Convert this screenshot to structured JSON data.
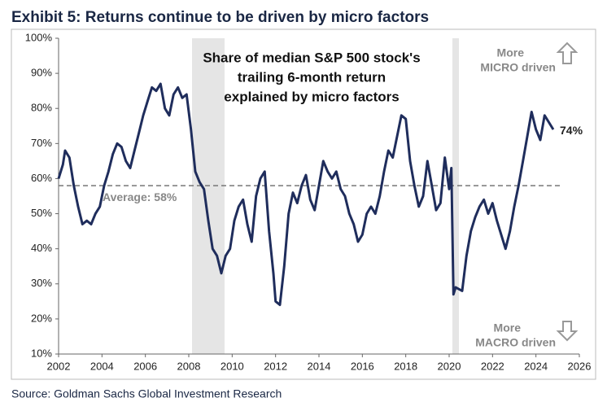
{
  "chart_data": {
    "type": "line",
    "title": "Exhibit 5: Returns continue to be driven by micro factors",
    "source": "Source: Goldman Sachs Global Investment Research",
    "annotation_lines": [
      "Share of median S&P 500 stock's",
      "trailing 6-month return",
      "explained by micro factors"
    ],
    "top_note_lines": [
      "More",
      "MICRO driven"
    ],
    "bottom_note_lines": [
      "More",
      "MACRO driven"
    ],
    "average": {
      "value": 58,
      "label": "Average: 58%"
    },
    "last_value_label": "74%",
    "shaded_periods": [
      [
        2008.15,
        2009.65
      ],
      [
        2020.15,
        2020.45
      ]
    ],
    "xlim": [
      2002,
      2026
    ],
    "xticks": [
      2002,
      2004,
      2006,
      2008,
      2010,
      2012,
      2014,
      2016,
      2018,
      2020,
      2022,
      2024,
      2026
    ],
    "ylim": [
      10,
      100
    ],
    "yticks": [
      {
        "value": 10,
        "label": "10%"
      },
      {
        "value": 20,
        "label": "20%"
      },
      {
        "value": 30,
        "label": "30%"
      },
      {
        "value": 40,
        "label": "40%"
      },
      {
        "value": 50,
        "label": "50%"
      },
      {
        "value": 60,
        "label": "60%"
      },
      {
        "value": 70,
        "label": "70%"
      },
      {
        "value": 80,
        "label": "80%"
      },
      {
        "value": 90,
        "label": "90%"
      },
      {
        "value": 100,
        "label": "100%"
      }
    ],
    "color": "#1f2d5c",
    "x": [
      2002.0,
      2002.2,
      2002.3,
      2002.5,
      2002.7,
      2002.9,
      2003.1,
      2003.3,
      2003.5,
      2003.7,
      2003.9,
      2004.1,
      2004.3,
      2004.5,
      2004.7,
      2004.9,
      2005.1,
      2005.3,
      2005.5,
      2005.7,
      2005.9,
      2006.1,
      2006.3,
      2006.5,
      2006.7,
      2006.9,
      2007.1,
      2007.3,
      2007.5,
      2007.7,
      2007.9,
      2008.1,
      2008.3,
      2008.5,
      2008.7,
      2008.9,
      2009.1,
      2009.3,
      2009.5,
      2009.7,
      2009.9,
      2010.1,
      2010.3,
      2010.5,
      2010.7,
      2010.9,
      2011.1,
      2011.3,
      2011.5,
      2011.7,
      2011.9,
      2012.0,
      2012.2,
      2012.4,
      2012.6,
      2012.8,
      2013.0,
      2013.2,
      2013.4,
      2013.6,
      2013.8,
      2014.0,
      2014.2,
      2014.4,
      2014.6,
      2014.8,
      2015.0,
      2015.2,
      2015.4,
      2015.6,
      2015.8,
      2016.0,
      2016.2,
      2016.4,
      2016.6,
      2016.8,
      2017.0,
      2017.2,
      2017.4,
      2017.6,
      2017.8,
      2018.0,
      2018.2,
      2018.4,
      2018.6,
      2018.8,
      2019.0,
      2019.2,
      2019.4,
      2019.6,
      2019.8,
      2020.0,
      2020.1,
      2020.2,
      2020.3,
      2020.6,
      2020.8,
      2021.0,
      2021.2,
      2021.4,
      2021.6,
      2021.8,
      2022.0,
      2022.2,
      2022.4,
      2022.6,
      2022.8,
      2023.0,
      2023.2,
      2023.4,
      2023.6,
      2023.8,
      2024.0,
      2024.2,
      2024.4,
      2024.6,
      2024.8
    ],
    "values": [
      60,
      64,
      68,
      66,
      58,
      52,
      47,
      48,
      47,
      50,
      52,
      58,
      62,
      67,
      70,
      69,
      65,
      63,
      68,
      73,
      78,
      82,
      86,
      85,
      87,
      80,
      78,
      84,
      86,
      83,
      84,
      74,
      62,
      59,
      57,
      48,
      40,
      38,
      33,
      38,
      40,
      48,
      52,
      54,
      47,
      42,
      55,
      60,
      62,
      45,
      33,
      25,
      24,
      35,
      50,
      56,
      53,
      58,
      61,
      54,
      51,
      58,
      65,
      62,
      60,
      62,
      57,
      55,
      50,
      47,
      42,
      44,
      50,
      52,
      50,
      55,
      62,
      68,
      66,
      72,
      78,
      77,
      65,
      58,
      52,
      55,
      65,
      58,
      51,
      53,
      66,
      57,
      63,
      27,
      29,
      28,
      38,
      45,
      49,
      52,
      54,
      50,
      53,
      48,
      44,
      40,
      45,
      52,
      58,
      65,
      72,
      79,
      74,
      71,
      78,
      76,
      74
    ]
  }
}
